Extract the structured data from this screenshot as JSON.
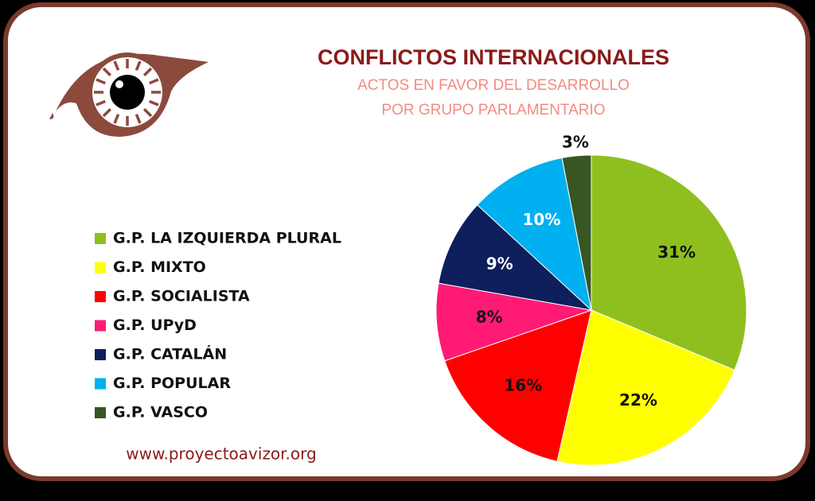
{
  "chart_data": {
    "type": "pie",
    "title": "CONFLICTOS INTERNACIONALES",
    "subtitle": [
      "ACTOS EN FAVOR DEL DESARROLLO",
      "POR GRUPO PARLAMENTARIO"
    ],
    "categories": [
      "G.P. LA IZQUIERDA PLURAL",
      "G.P. MIXTO",
      "G.P. SOCIALISTA",
      "G.P. UPyD",
      "G.P. CATALÁN",
      "G.P. POPULAR",
      "G.P. VASCO"
    ],
    "values": [
      31,
      22,
      16,
      8,
      9,
      10,
      3
    ],
    "value_labels": [
      "31%",
      "22%",
      "16%",
      "8%",
      "9%",
      "10%",
      "3%"
    ],
    "colors": [
      "#8fbf1f",
      "#ffff00",
      "#ff0000",
      "#ff1a75",
      "#0d1f5c",
      "#00b0f0",
      "#375623"
    ],
    "label_colors": [
      "#111111",
      "#111111",
      "#111111",
      "#111111",
      "#ffffff",
      "#ffffff",
      "#111111"
    ],
    "legend": "left",
    "source": "www.proyectoavizor.org"
  }
}
